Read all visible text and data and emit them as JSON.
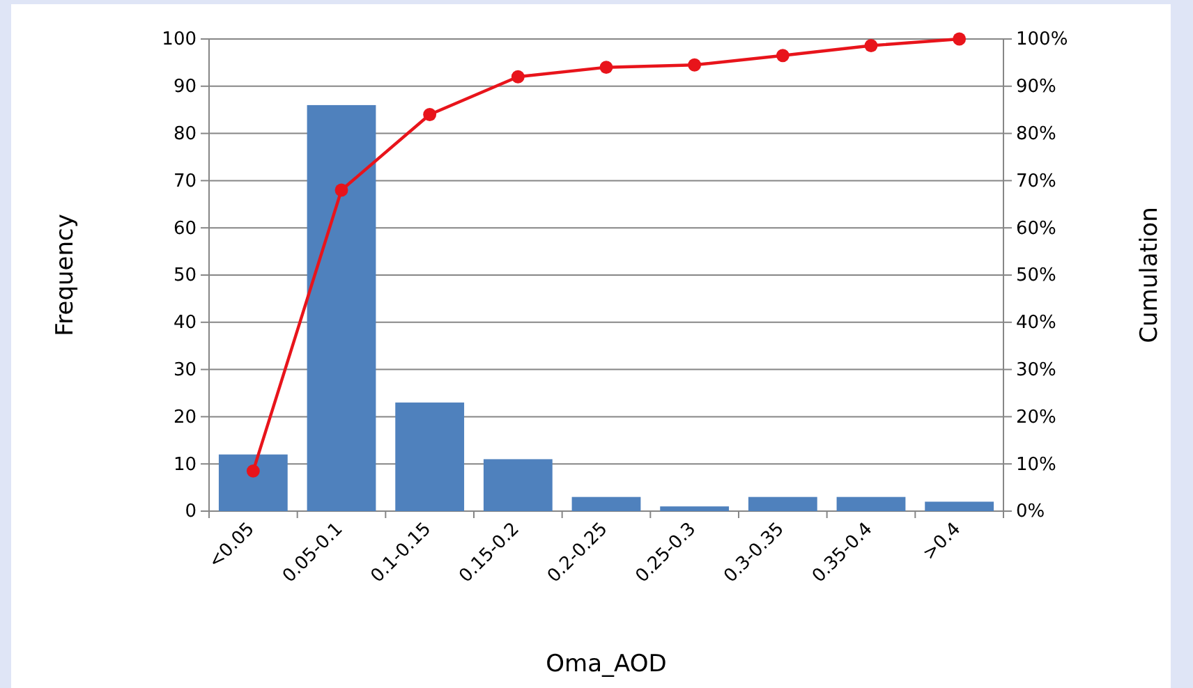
{
  "chart_data": {
    "type": "bar",
    "xlabel": "Oma_AOD",
    "ylabel": "Frequency",
    "y2label": "Cumulation",
    "categories": [
      "<0.05",
      "0.05-0.1",
      "0.1-0.15",
      "0.15-0.2",
      "0.2-0.25",
      "0.25-0.3",
      "0.3-0.35",
      "0.35-0.4",
      ">0.4"
    ],
    "series": [
      {
        "color": "#4f81bd",
        "values": [
          12,
          86,
          23,
          11,
          3,
          1,
          3,
          3,
          2
        ]
      },
      {
        "type": "line",
        "axis": "y2",
        "color": "#e8141b",
        "marker": "circle",
        "values": [
          0.085,
          0.68,
          0.84,
          0.92,
          0.94,
          0.945,
          0.965,
          0.986,
          1
        ]
      }
    ],
    "ylim": [
      0,
      100
    ],
    "yticks": [
      0,
      10,
      20,
      30,
      40,
      50,
      60,
      70,
      80,
      90,
      100
    ],
    "y2lim": [
      0,
      1
    ],
    "y2ticks": [
      {
        "value": 0,
        "label": "0%"
      },
      {
        "value": 0.1,
        "label": "10%"
      },
      {
        "value": 0.2,
        "label": "20%"
      },
      {
        "value": 0.3,
        "label": "30%"
      },
      {
        "value": 0.4,
        "label": "40%"
      },
      {
        "value": 0.5,
        "label": "50%"
      },
      {
        "value": 0.6,
        "label": "60%"
      },
      {
        "value": 0.7,
        "label": "70%"
      },
      {
        "value": 0.8,
        "label": "80%"
      },
      {
        "value": 0.9,
        "label": "90%"
      },
      {
        "value": 1,
        "label": "100%"
      }
    ],
    "grid": "y"
  }
}
